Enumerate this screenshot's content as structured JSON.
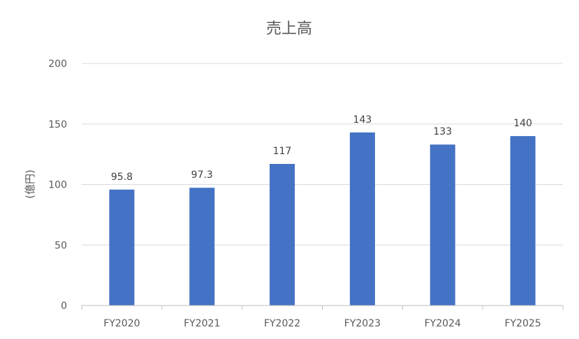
{
  "chart_data": {
    "type": "bar",
    "title": "売上高",
    "xlabel": "",
    "ylabel": "(億円)",
    "categories": [
      "FY2020",
      "FY2021",
      "FY2022",
      "FY2023",
      "FY2024",
      "FY2025"
    ],
    "values": [
      95.8,
      97.3,
      117,
      143,
      133,
      140
    ],
    "value_labels": [
      "95.8",
      "97.3",
      "117",
      "143",
      "133",
      "140"
    ],
    "ylim": [
      0,
      200
    ],
    "yticks": [
      0,
      50,
      100,
      150,
      200
    ],
    "ytick_labels": [
      "0",
      "50",
      "100",
      "150",
      "200"
    ],
    "grid": true,
    "legend": "none",
    "bar_color": "#4472c4"
  }
}
